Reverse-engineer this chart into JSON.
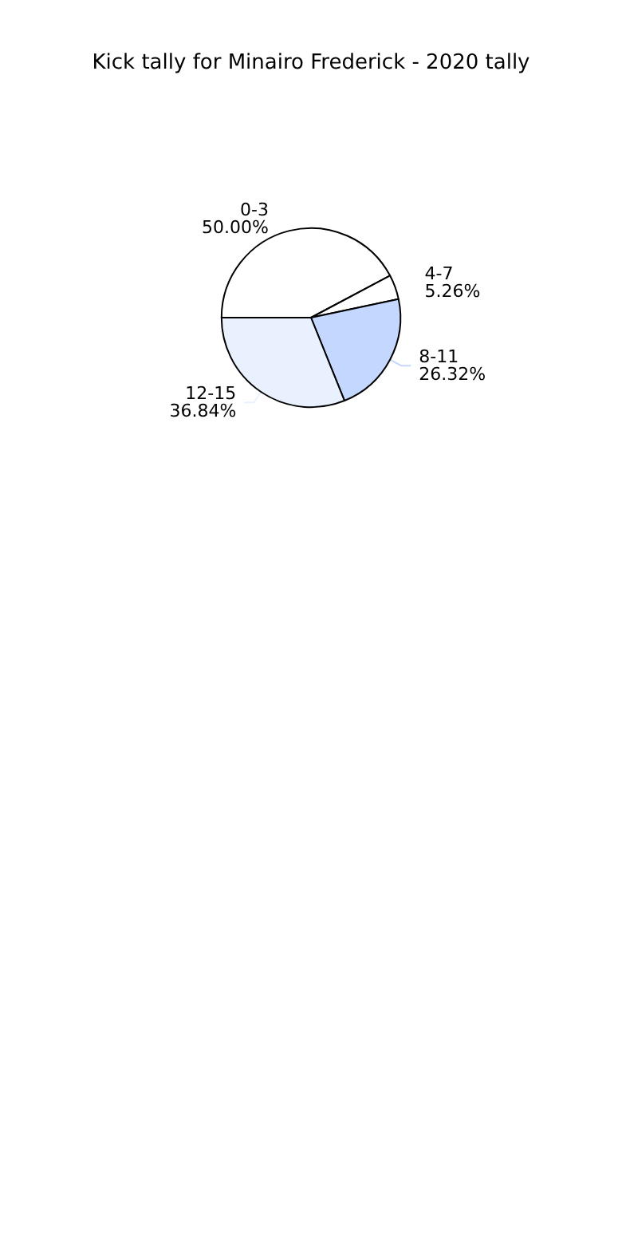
{
  "chart_data": {
    "type": "pie",
    "title": "Kick tally for Minairo Frederick - 2020 tally",
    "categories": [
      "0-3",
      "4-7",
      "8-11",
      "12-15"
    ],
    "values": [
      50,
      5.26,
      26.32,
      36.84
    ],
    "colors": [
      "#ffffff",
      "#ffffff",
      "#c4d8ff",
      "#eaf1fe"
    ],
    "value_labels": [
      "50.00%",
      "5.26%",
      "26.32%",
      "36.84%"
    ]
  }
}
